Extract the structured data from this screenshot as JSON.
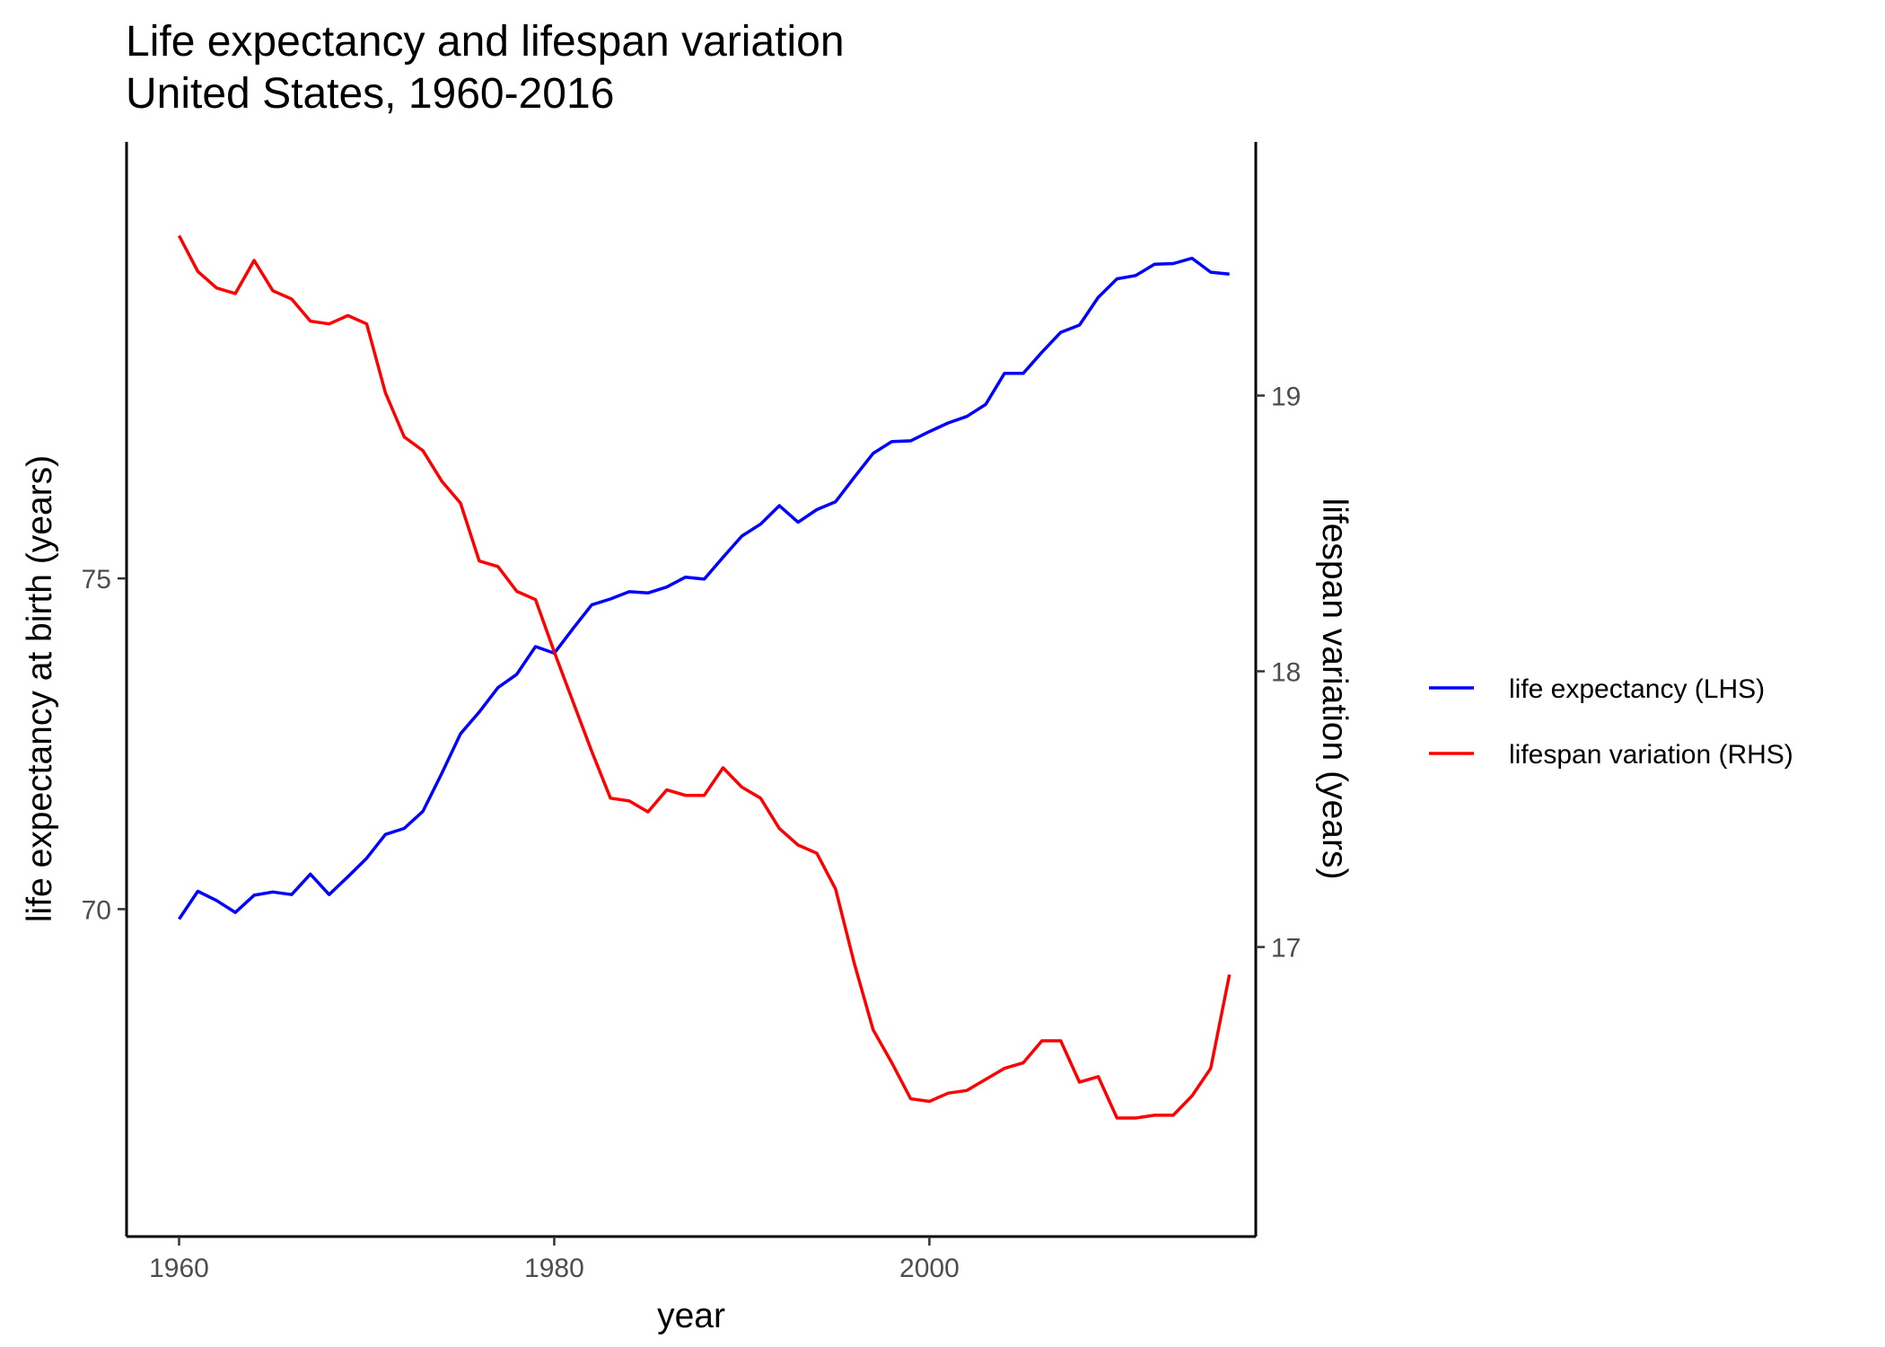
{
  "chart_data": {
    "type": "line",
    "title": "Life expectancy and lifespan variation",
    "subtitle": "United States, 1960-2016",
    "xlabel": "year",
    "ylabel_left": "life expectancy at birth (years)",
    "ylabel_right": "lifespan variation (years)",
    "xlim": [
      1957.2,
      2017.4
    ],
    "ylim_left": [
      65.05,
      81.6
    ],
    "ylim_right": [
      15.95,
      19.92
    ],
    "x_ticks": [
      "1960",
      "1980",
      "2000"
    ],
    "y_left_ticks": [
      "70",
      "75"
    ],
    "y_right_ticks": [
      "17",
      "18",
      "19"
    ],
    "grid": false,
    "legend_position": "right",
    "x": [
      1960,
      1961,
      1962,
      1963,
      1964,
      1965,
      1966,
      1967,
      1968,
      1969,
      1970,
      1971,
      1972,
      1973,
      1974,
      1975,
      1976,
      1977,
      1978,
      1979,
      1980,
      1981,
      1982,
      1983,
      1984,
      1985,
      1986,
      1987,
      1988,
      1989,
      1990,
      1991,
      1992,
      1993,
      1994,
      1995,
      1996,
      1997,
      1998,
      1999,
      2000,
      2001,
      2002,
      2003,
      2004,
      2005,
      2006,
      2007,
      2008,
      2009,
      2010,
      2011,
      2012,
      2013,
      2014,
      2015,
      2016
    ],
    "series": [
      {
        "name": "life expectancy (LHS)",
        "axis": "left",
        "color": "#0000ff",
        "values": [
          69.85,
          70.27,
          70.13,
          69.95,
          70.21,
          70.26,
          70.22,
          70.53,
          70.22,
          70.49,
          70.77,
          71.13,
          71.22,
          71.48,
          72.05,
          72.65,
          72.98,
          73.35,
          73.55,
          73.97,
          73.87,
          74.24,
          74.6,
          74.69,
          74.8,
          74.78,
          74.87,
          75.02,
          74.99,
          75.32,
          75.64,
          75.82,
          76.1,
          75.85,
          76.04,
          76.16,
          76.53,
          76.89,
          77.07,
          77.08,
          77.22,
          77.35,
          77.45,
          77.63,
          78.1,
          78.1,
          78.42,
          78.72,
          78.83,
          79.25,
          79.53,
          79.58,
          79.75,
          79.76,
          79.84,
          79.63,
          79.6
        ]
      },
      {
        "name": "lifespan variation (RHS)",
        "axis": "right",
        "color": "#ff0000",
        "values": [
          19.58,
          19.45,
          19.39,
          19.37,
          19.49,
          19.38,
          19.35,
          19.27,
          19.26,
          19.29,
          19.26,
          19.01,
          18.85,
          18.8,
          18.69,
          18.61,
          18.4,
          18.38,
          18.29,
          18.26,
          18.07,
          17.89,
          17.71,
          17.54,
          17.53,
          17.49,
          17.57,
          17.55,
          17.55,
          17.65,
          17.58,
          17.54,
          17.43,
          17.37,
          17.34,
          17.21,
          16.94,
          16.7,
          16.58,
          16.45,
          16.44,
          16.47,
          16.48,
          16.52,
          16.56,
          16.58,
          16.66,
          16.66,
          16.51,
          16.53,
          16.38,
          16.38,
          16.39,
          16.39,
          16.46,
          16.56,
          16.9
        ]
      }
    ]
  }
}
